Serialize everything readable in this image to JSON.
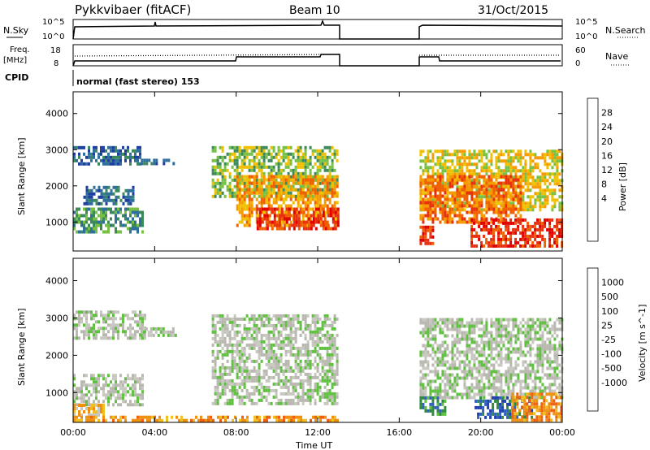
{
  "header": {
    "station": "Pykkvibaer (fitACF)",
    "beam": "Beam 10",
    "date": "31/Oct/2015"
  },
  "panels": {
    "nsky": {
      "left_label": "N.Sky",
      "right_label": "N.Search",
      "tick_hi": "10^5",
      "tick_lo": "10^0",
      "ylim": [
        0,
        5
      ]
    },
    "freq": {
      "left_label": "Freq.",
      "left_unit": "[MHz]",
      "right_label": "Nave",
      "left_ticks": [
        "18",
        "8"
      ],
      "right_ticks": [
        "60",
        "0"
      ]
    },
    "cpid": {
      "label": "CPID",
      "text": "normal (fast stereo) 153"
    }
  },
  "chart_data": [
    {
      "type": "heatmap",
      "name": "power",
      "ylabel": "Slant Range [km]",
      "ylim": [
        200,
        4600
      ],
      "yticks": [
        "4000",
        "3000",
        "2000",
        "1000"
      ],
      "colorbar": {
        "label": "Power [dB]",
        "ticks": [
          "28",
          "24",
          "20",
          "16",
          "12",
          "8",
          "4"
        ],
        "colors": [
          "#0000ff",
          "#1f3fa0",
          "#2f6f9e",
          "#3c8a5a",
          "#76c043",
          "#f0c000",
          "#f59a00",
          "#f06000",
          "#e83010",
          "#e00000"
        ]
      },
      "data_gap_hours": [
        13.0,
        17.0
      ],
      "regions": [
        {
          "t": [
            0.0,
            3.3
          ],
          "r": [
            2600,
            3100
          ],
          "level": 2
        },
        {
          "t": [
            3.2,
            5.0
          ],
          "r": [
            2600,
            2750
          ],
          "level": 2
        },
        {
          "t": [
            0.0,
            3.4
          ],
          "r": [
            700,
            1400
          ],
          "level": 3
        },
        {
          "t": [
            0.5,
            3.0
          ],
          "r": [
            1500,
            2000
          ],
          "level": 2
        },
        {
          "t": [
            6.8,
            13.0
          ],
          "r": [
            1700,
            3100
          ],
          "level": 4
        },
        {
          "t": [
            8.0,
            13.0
          ],
          "r": [
            900,
            2300
          ],
          "level": 6
        },
        {
          "t": [
            9.0,
            13.0
          ],
          "r": [
            800,
            1400
          ],
          "level": 8
        },
        {
          "t": [
            17.0,
            24.0
          ],
          "r": [
            1300,
            3000
          ],
          "level": 5
        },
        {
          "t": [
            17.0,
            22.0
          ],
          "r": [
            1000,
            2300
          ],
          "level": 7
        },
        {
          "t": [
            17.0,
            17.6
          ],
          "r": [
            400,
            900
          ],
          "level": 8
        },
        {
          "t": [
            19.5,
            24.0
          ],
          "r": [
            300,
            1100
          ],
          "level": 8
        }
      ]
    },
    {
      "type": "heatmap",
      "name": "velocity",
      "ylabel": "Slant Range [km]",
      "xlabel": "Time UT",
      "ylim": [
        200,
        4600
      ],
      "yticks": [
        "4000",
        "3000",
        "2000",
        "1000"
      ],
      "xticks": [
        "00:00",
        "04:00",
        "08:00",
        "12:00",
        "16:00",
        "20:00",
        "00:00"
      ],
      "colorbar": {
        "label": "Velocity [m s^-1]",
        "ticks": [
          "1000",
          "500",
          "100",
          "25",
          "-25",
          "-100",
          "-500",
          "-1000"
        ],
        "colors": [
          "#2040b0",
          "#3060c0",
          "#2f8a40",
          "#60c040",
          "#b8b8b0",
          "#c8c8c0",
          "#f0c020",
          "#f09010",
          "#f06010",
          "#e00000"
        ]
      },
      "regions": [
        {
          "t": [
            0.0,
            3.5
          ],
          "r": [
            2500,
            3200
          ],
          "level": 4
        },
        {
          "t": [
            3.3,
            5.0
          ],
          "r": [
            2550,
            2750
          ],
          "level": 4
        },
        {
          "t": [
            0.0,
            3.4
          ],
          "r": [
            700,
            1500
          ],
          "level": 4
        },
        {
          "t": [
            0.0,
            1.5
          ],
          "r": [
            400,
            700
          ],
          "level": 6
        },
        {
          "t": [
            6.8,
            13.0
          ],
          "r": [
            700,
            3100
          ],
          "level": 4
        },
        {
          "t": [
            17.0,
            24.0
          ],
          "r": [
            900,
            3000
          ],
          "level": 4
        },
        {
          "t": [
            17.0,
            18.2
          ],
          "r": [
            400,
            900
          ],
          "level": 2
        },
        {
          "t": [
            19.7,
            22.5
          ],
          "r": [
            300,
            900
          ],
          "level": 1
        },
        {
          "t": [
            21.5,
            24.0
          ],
          "r": [
            300,
            1000
          ],
          "level": 7
        },
        {
          "t": [
            0.0,
            13.0
          ],
          "r": [
            220,
            380
          ],
          "level": 7
        }
      ]
    }
  ]
}
